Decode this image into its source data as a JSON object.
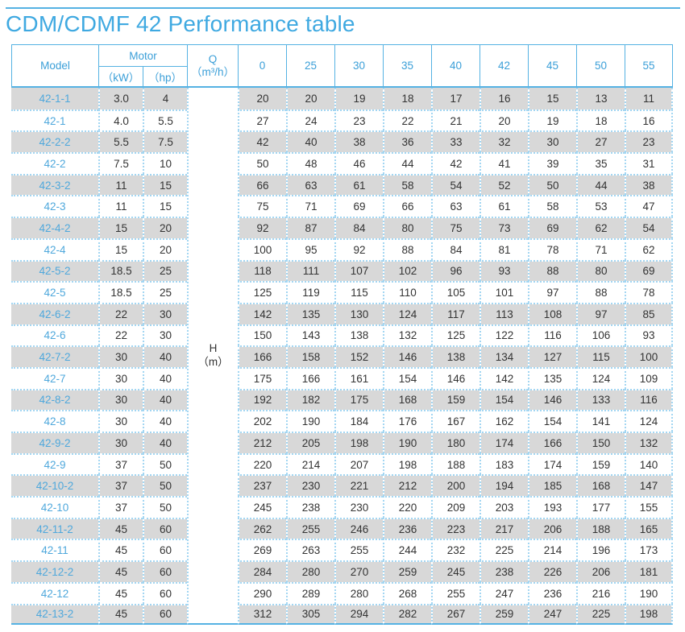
{
  "title": "CDM/CDMF 42 Performance table",
  "table": {
    "header": {
      "model": "Model",
      "motor": "Motor",
      "kw": "（kW）",
      "hp": "（hp）",
      "q_line1": "Q",
      "q_line2": "（m³/h）",
      "flow_values": [
        "0",
        "25",
        "30",
        "35",
        "40",
        "42",
        "45",
        "50",
        "55"
      ]
    },
    "body_center_label": {
      "line1": "H",
      "line2": "（m）"
    },
    "rows": [
      {
        "model": "42-1-1",
        "kw": "3.0",
        "hp": "4",
        "heads": [
          "20",
          "20",
          "19",
          "18",
          "17",
          "16",
          "15",
          "13",
          "11"
        ]
      },
      {
        "model": "42-1",
        "kw": "4.0",
        "hp": "5.5",
        "heads": [
          "27",
          "24",
          "23",
          "22",
          "21",
          "20",
          "19",
          "18",
          "16"
        ]
      },
      {
        "model": "42-2-2",
        "kw": "5.5",
        "hp": "7.5",
        "heads": [
          "42",
          "40",
          "38",
          "36",
          "33",
          "32",
          "30",
          "27",
          "23"
        ]
      },
      {
        "model": "42-2",
        "kw": "7.5",
        "hp": "10",
        "heads": [
          "50",
          "48",
          "46",
          "44",
          "42",
          "41",
          "39",
          "35",
          "31"
        ]
      },
      {
        "model": "42-3-2",
        "kw": "11",
        "hp": "15",
        "heads": [
          "66",
          "63",
          "61",
          "58",
          "54",
          "52",
          "50",
          "44",
          "38"
        ]
      },
      {
        "model": "42-3",
        "kw": "11",
        "hp": "15",
        "heads": [
          "75",
          "71",
          "69",
          "66",
          "63",
          "61",
          "58",
          "53",
          "47"
        ]
      },
      {
        "model": "42-4-2",
        "kw": "15",
        "hp": "20",
        "heads": [
          "92",
          "87",
          "84",
          "80",
          "75",
          "73",
          "69",
          "62",
          "54"
        ]
      },
      {
        "model": "42-4",
        "kw": "15",
        "hp": "20",
        "heads": [
          "100",
          "95",
          "92",
          "88",
          "84",
          "81",
          "78",
          "71",
          "62"
        ]
      },
      {
        "model": "42-5-2",
        "kw": "18.5",
        "hp": "25",
        "heads": [
          "118",
          "111",
          "107",
          "102",
          "96",
          "93",
          "88",
          "80",
          "69"
        ]
      },
      {
        "model": "42-5",
        "kw": "18.5",
        "hp": "25",
        "heads": [
          "125",
          "119",
          "115",
          "110",
          "105",
          "101",
          "97",
          "88",
          "78"
        ]
      },
      {
        "model": "42-6-2",
        "kw": "22",
        "hp": "30",
        "heads": [
          "142",
          "135",
          "130",
          "124",
          "117",
          "113",
          "108",
          "97",
          "85"
        ]
      },
      {
        "model": "42-6",
        "kw": "22",
        "hp": "30",
        "heads": [
          "150",
          "143",
          "138",
          "132",
          "125",
          "122",
          "116",
          "106",
          "93"
        ]
      },
      {
        "model": "42-7-2",
        "kw": "30",
        "hp": "40",
        "heads": [
          "166",
          "158",
          "152",
          "146",
          "138",
          "134",
          "127",
          "115",
          "100"
        ]
      },
      {
        "model": "42-7",
        "kw": "30",
        "hp": "40",
        "heads": [
          "175",
          "166",
          "161",
          "154",
          "146",
          "142",
          "135",
          "124",
          "109"
        ]
      },
      {
        "model": "42-8-2",
        "kw": "30",
        "hp": "40",
        "heads": [
          "192",
          "182",
          "175",
          "168",
          "159",
          "154",
          "146",
          "133",
          "116"
        ]
      },
      {
        "model": "42-8",
        "kw": "30",
        "hp": "40",
        "heads": [
          "202",
          "190",
          "184",
          "176",
          "167",
          "162",
          "154",
          "141",
          "124"
        ]
      },
      {
        "model": "42-9-2",
        "kw": "30",
        "hp": "40",
        "heads": [
          "212",
          "205",
          "198",
          "190",
          "180",
          "174",
          "166",
          "150",
          "132"
        ]
      },
      {
        "model": "42-9",
        "kw": "37",
        "hp": "50",
        "heads": [
          "220",
          "214",
          "207",
          "198",
          "188",
          "183",
          "174",
          "159",
          "140"
        ]
      },
      {
        "model": "42-10-2",
        "kw": "37",
        "hp": "50",
        "heads": [
          "237",
          "230",
          "221",
          "212",
          "200",
          "194",
          "185",
          "168",
          "147"
        ]
      },
      {
        "model": "42-10",
        "kw": "37",
        "hp": "50",
        "heads": [
          "245",
          "238",
          "230",
          "220",
          "209",
          "203",
          "193",
          "177",
          "155"
        ]
      },
      {
        "model": "42-11-2",
        "kw": "45",
        "hp": "60",
        "heads": [
          "262",
          "255",
          "246",
          "236",
          "223",
          "217",
          "206",
          "188",
          "165"
        ]
      },
      {
        "model": "42-11",
        "kw": "45",
        "hp": "60",
        "heads": [
          "269",
          "263",
          "255",
          "244",
          "232",
          "225",
          "214",
          "196",
          "173"
        ]
      },
      {
        "model": "42-12-2",
        "kw": "45",
        "hp": "60",
        "heads": [
          "284",
          "280",
          "270",
          "259",
          "245",
          "238",
          "226",
          "206",
          "181"
        ]
      },
      {
        "model": "42-12",
        "kw": "45",
        "hp": "60",
        "heads": [
          "290",
          "289",
          "280",
          "268",
          "255",
          "247",
          "236",
          "216",
          "190"
        ]
      },
      {
        "model": "42-13-2",
        "kw": "45",
        "hp": "60",
        "heads": [
          "312",
          "305",
          "294",
          "282",
          "267",
          "259",
          "247",
          "225",
          "198"
        ]
      }
    ]
  },
  "colors": {
    "accent_blue": "#3fa9e1",
    "solid_border": "#55b2e3",
    "dotted_border": "#a3d6f2",
    "row_stripe": "#d8d8d8",
    "model_text": "#4fa8dc",
    "data_text": "#333333"
  }
}
